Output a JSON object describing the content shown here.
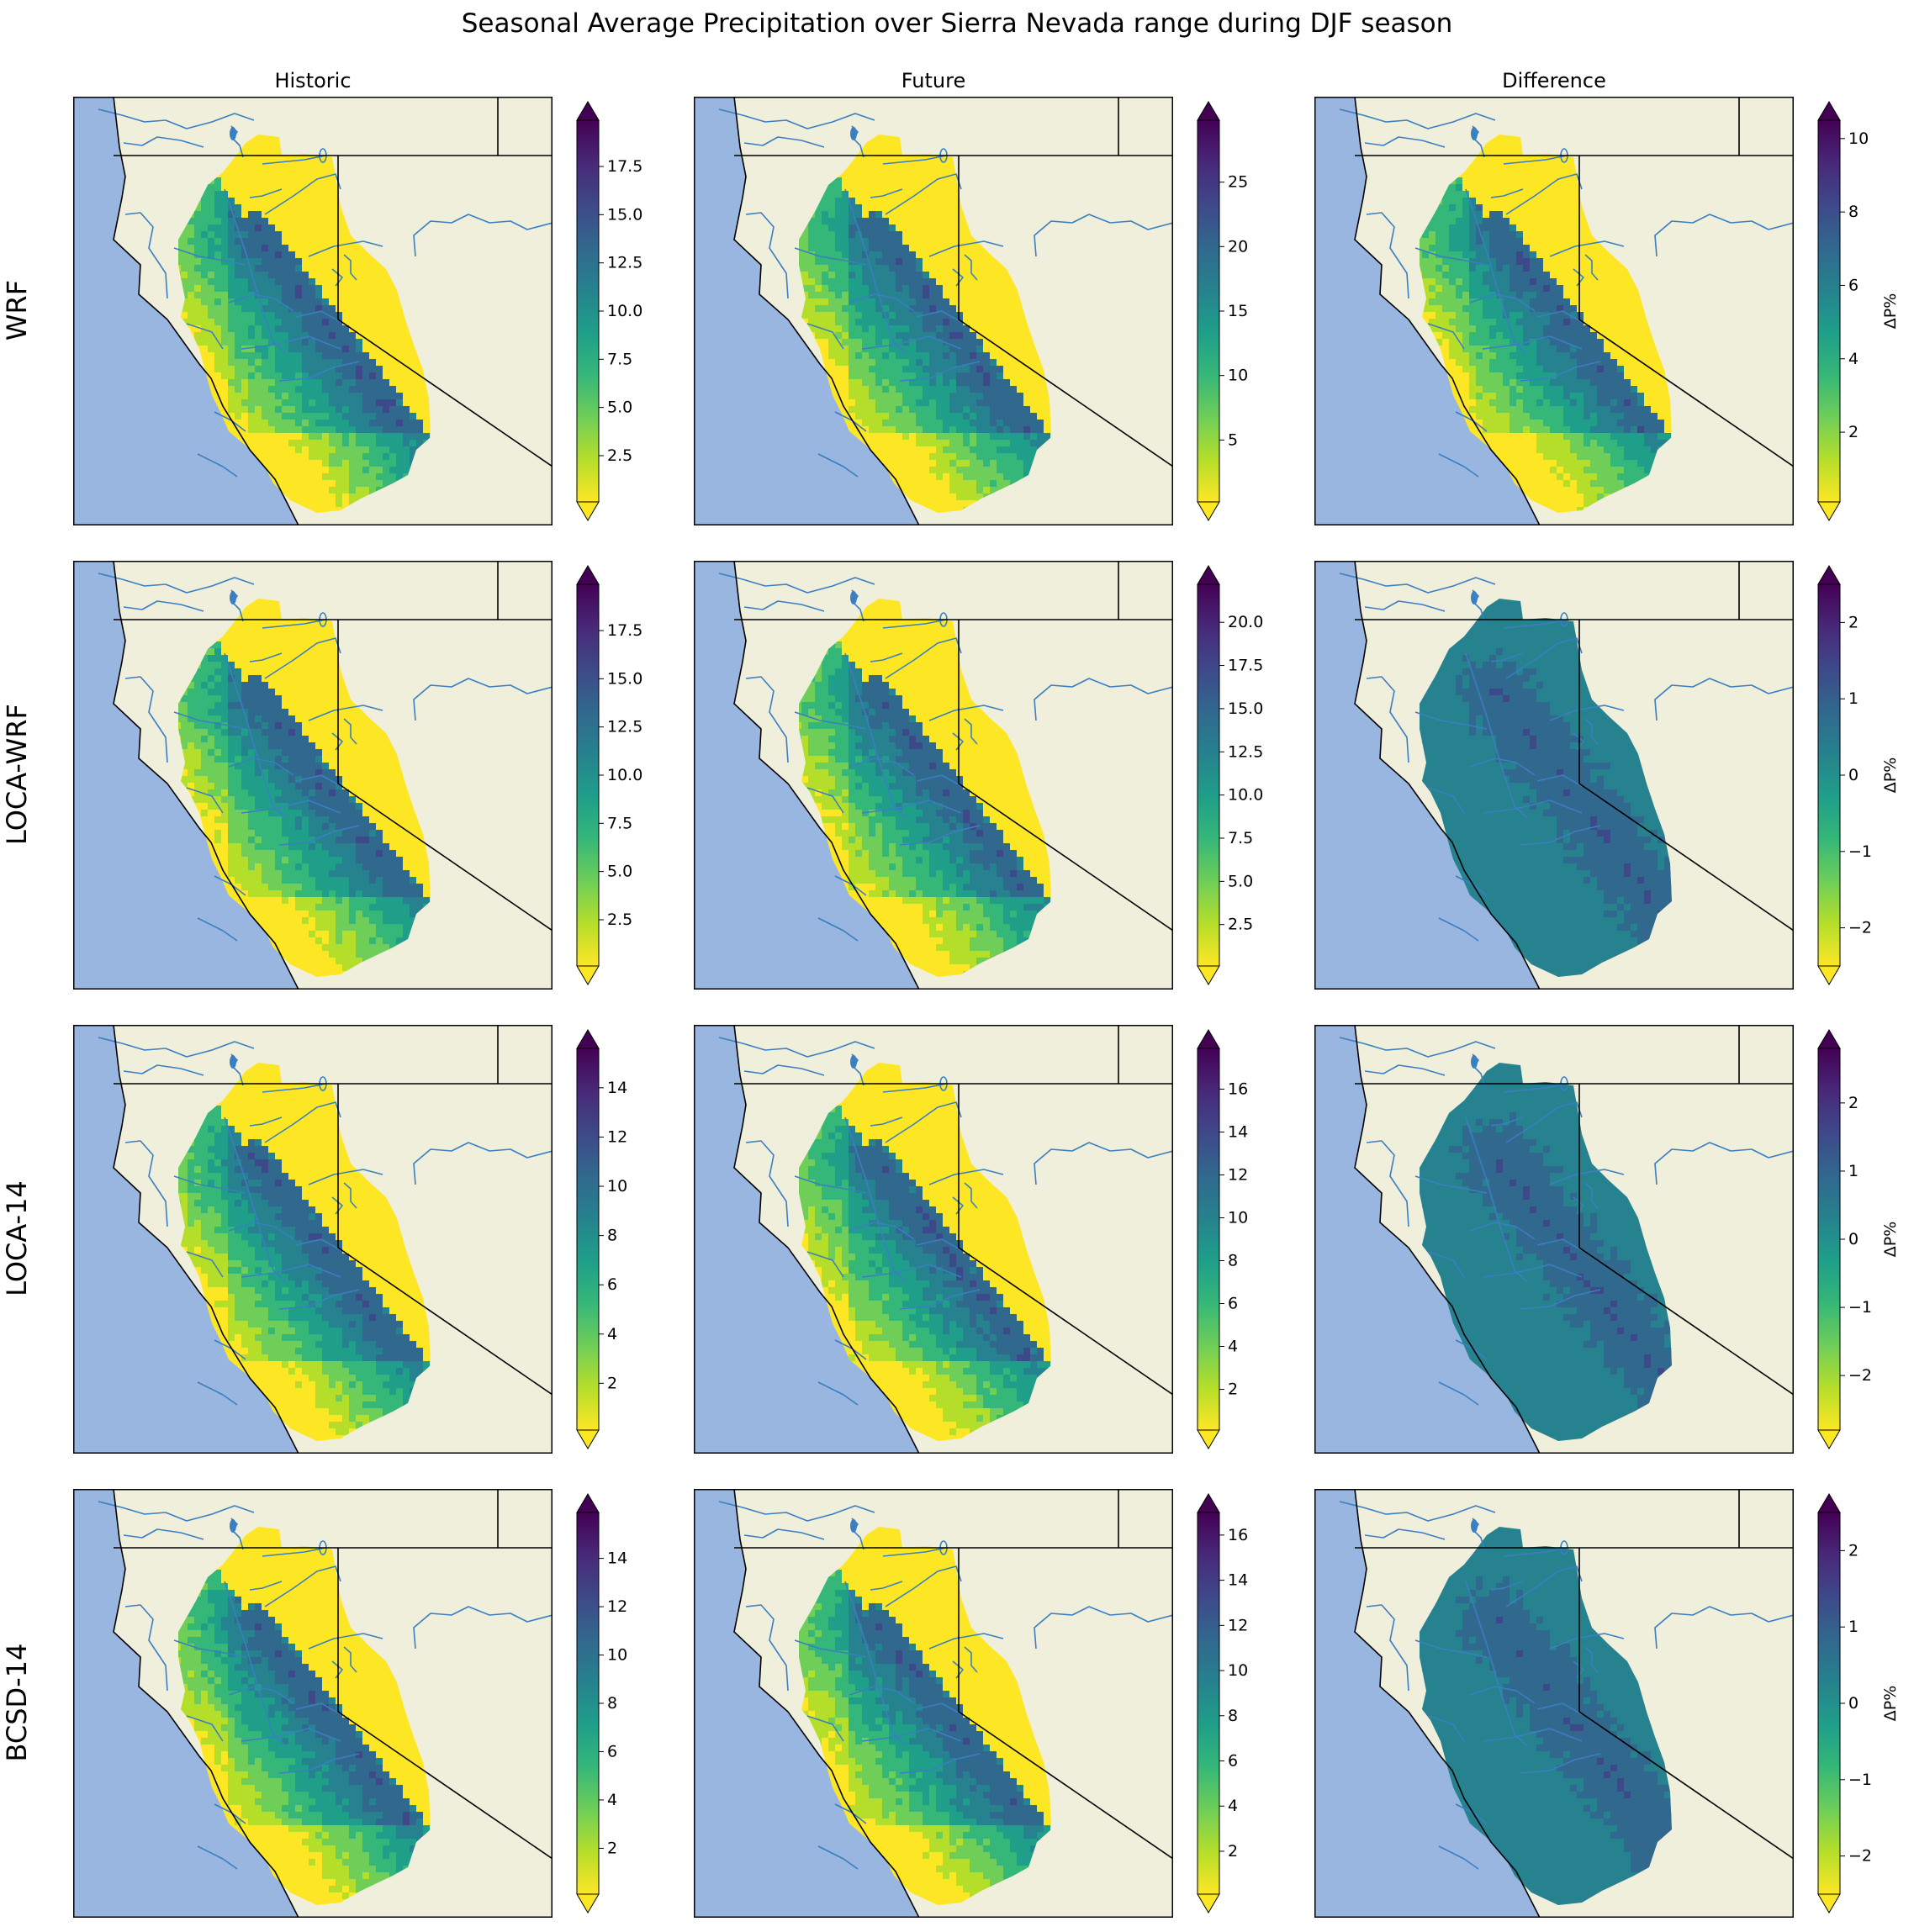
{
  "title": "Seasonal Average Precipitation over Sierra Nevada range during DJF season",
  "columns": [
    "Historic",
    "Future",
    "Difference"
  ],
  "colors": {
    "ocean": "#99b6e0",
    "land": "#efefdc",
    "border": "#000000",
    "river": "#3a7fc2",
    "viridis": [
      "#440154",
      "#482878",
      "#3e4989",
      "#31688e",
      "#26828e",
      "#1f9e89",
      "#35b779",
      "#6ece58",
      "#b5de2b",
      "#fde725"
    ]
  },
  "chart_data": [
    {
      "type": "heatmap",
      "model": "WRF",
      "panel": "Historic",
      "pattern": "gradient",
      "colorbar": {
        "ticks": [
          2.5,
          5.0,
          7.5,
          10.0,
          12.5,
          15.0,
          17.5
        ],
        "tick_labels": [
          "2.5",
          "5.0",
          "7.5",
          "10.0",
          "12.5",
          "15.0",
          "17.5"
        ],
        "range": [
          0.1,
          19.9
        ],
        "label": "",
        "extend": "both"
      }
    },
    {
      "type": "heatmap",
      "model": "WRF",
      "panel": "Future",
      "pattern": "gradient",
      "colorbar": {
        "ticks": [
          5,
          10,
          15,
          20,
          25
        ],
        "tick_labels": [
          "5",
          "10",
          "15",
          "20",
          "25"
        ],
        "range": [
          0.2,
          29.8
        ],
        "label": "",
        "extend": "both"
      }
    },
    {
      "type": "heatmap",
      "model": "WRF",
      "panel": "Difference",
      "pattern": "gradient",
      "colorbar": {
        "ticks": [
          2,
          4,
          6,
          8,
          10
        ],
        "tick_labels": [
          "2",
          "4",
          "6",
          "8",
          "10"
        ],
        "range": [
          0.1,
          10.5
        ],
        "label": "ΔP%",
        "extend": "both"
      }
    },
    {
      "type": "heatmap",
      "model": "LOCA-WRF",
      "panel": "Historic",
      "pattern": "gradient",
      "colorbar": {
        "ticks": [
          2.5,
          5.0,
          7.5,
          10.0,
          12.5,
          15.0,
          17.5
        ],
        "tick_labels": [
          "2.5",
          "5.0",
          "7.5",
          "10.0",
          "12.5",
          "15.0",
          "17.5"
        ],
        "range": [
          0.1,
          19.9
        ],
        "label": "",
        "extend": "both"
      }
    },
    {
      "type": "heatmap",
      "model": "LOCA-WRF",
      "panel": "Future",
      "pattern": "gradient",
      "colorbar": {
        "ticks": [
          2.5,
          5.0,
          7.5,
          10.0,
          12.5,
          15.0,
          17.5,
          20.0
        ],
        "tick_labels": [
          "2.5",
          "5.0",
          "7.5",
          "10.0",
          "12.5",
          "15.0",
          "17.5",
          "20.0"
        ],
        "range": [
          0.1,
          22.2
        ],
        "label": "",
        "extend": "both"
      }
    },
    {
      "type": "heatmap",
      "model": "LOCA-WRF",
      "panel": "Difference",
      "pattern": "uniform",
      "colorbar": {
        "ticks": [
          -2,
          -1,
          0,
          1,
          2
        ],
        "tick_labels": [
          "−2",
          "−1",
          "0",
          "1",
          "2"
        ],
        "range": [
          -2.5,
          2.5
        ],
        "label": "ΔP%",
        "extend": "both"
      }
    },
    {
      "type": "heatmap",
      "model": "LOCA-14",
      "panel": "Historic",
      "pattern": "gradient",
      "colorbar": {
        "ticks": [
          2,
          4,
          6,
          8,
          10,
          12,
          14
        ],
        "tick_labels": [
          "2",
          "4",
          "6",
          "8",
          "10",
          "12",
          "14"
        ],
        "range": [
          0.1,
          15.6
        ],
        "label": "",
        "extend": "both"
      }
    },
    {
      "type": "heatmap",
      "model": "LOCA-14",
      "panel": "Future",
      "pattern": "gradient",
      "colorbar": {
        "ticks": [
          2,
          4,
          6,
          8,
          10,
          12,
          14,
          16
        ],
        "tick_labels": [
          "2",
          "4",
          "6",
          "8",
          "10",
          "12",
          "14",
          "16"
        ],
        "range": [
          0.1,
          17.9
        ],
        "label": "",
        "extend": "both"
      }
    },
    {
      "type": "heatmap",
      "model": "LOCA-14",
      "panel": "Difference",
      "pattern": "uniform",
      "colorbar": {
        "ticks": [
          -2,
          -1,
          0,
          1,
          2
        ],
        "tick_labels": [
          "−2",
          "−1",
          "0",
          "1",
          "2"
        ],
        "range": [
          -2.8,
          2.8
        ],
        "label": "ΔP%",
        "extend": "both"
      }
    },
    {
      "type": "heatmap",
      "model": "BCSD-14",
      "panel": "Historic",
      "pattern": "gradient",
      "colorbar": {
        "ticks": [
          2,
          4,
          6,
          8,
          10,
          12,
          14
        ],
        "tick_labels": [
          "2",
          "4",
          "6",
          "8",
          "10",
          "12",
          "14"
        ],
        "range": [
          0.1,
          15.9
        ],
        "label": "",
        "extend": "both"
      }
    },
    {
      "type": "heatmap",
      "model": "BCSD-14",
      "panel": "Future",
      "pattern": "gradient",
      "colorbar": {
        "ticks": [
          2,
          4,
          6,
          8,
          10,
          12,
          14,
          16
        ],
        "tick_labels": [
          "2",
          "4",
          "6",
          "8",
          "10",
          "12",
          "14",
          "16"
        ],
        "range": [
          0.1,
          17.0
        ],
        "label": "",
        "extend": "both"
      }
    },
    {
      "type": "heatmap",
      "model": "BCSD-14",
      "panel": "Difference",
      "pattern": "uniform",
      "colorbar": {
        "ticks": [
          -2,
          -1,
          0,
          1,
          2
        ],
        "tick_labels": [
          "−2",
          "−1",
          "0",
          "1",
          "2"
        ],
        "range": [
          -2.5,
          2.5
        ],
        "label": "ΔP%",
        "extend": "both"
      }
    }
  ]
}
